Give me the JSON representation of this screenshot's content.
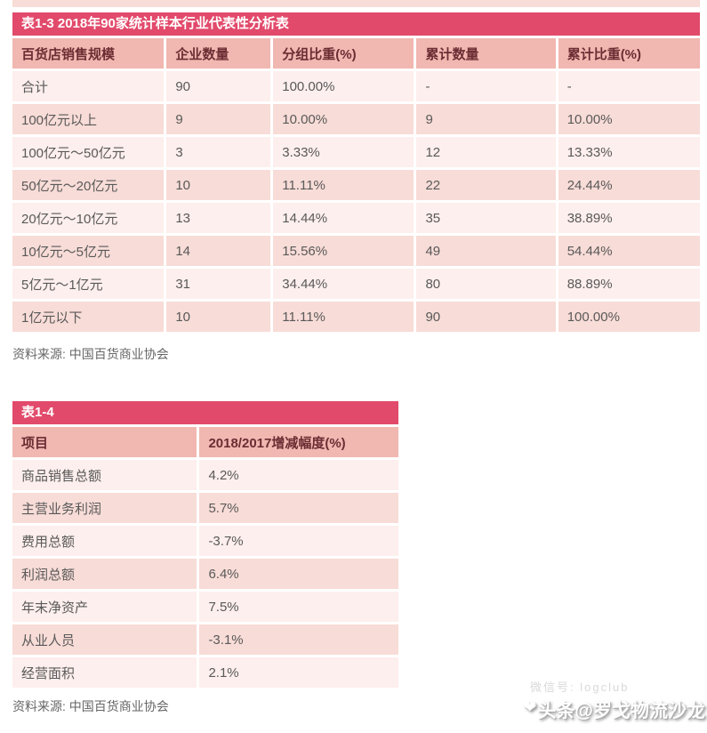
{
  "colors": {
    "title_bar": "#e24a6b",
    "header_bg": "#f1b7b1",
    "header_text": "#6b2d33",
    "row_light": "#fdefed",
    "row_dark": "#f8dcd7",
    "body_text": "#595959",
    "source_text": "#666666"
  },
  "table13": {
    "title": "表1-3 2018年90家统计样本行业代表性分析表",
    "headers": [
      "百货店销售规模",
      "企业数量",
      "分组比重(%)",
      "累计数量",
      "累计比重(%)"
    ],
    "rows": [
      [
        "合计",
        "90",
        "100.00%",
        "-",
        "-"
      ],
      [
        "100亿元以上",
        "9",
        "10.00%",
        "9",
        "10.00%"
      ],
      [
        "100亿元～50亿元",
        "3",
        "3.33%",
        "12",
        "13.33%"
      ],
      [
        "50亿元～20亿元",
        "10",
        "11.11%",
        "22",
        "24.44%"
      ],
      [
        "20亿元～10亿元",
        "13",
        "14.44%",
        "35",
        "38.89%"
      ],
      [
        "10亿元～5亿元",
        "14",
        "15.56%",
        "49",
        "54.44%"
      ],
      [
        "5亿元～1亿元",
        "31",
        "34.44%",
        "80",
        "88.89%"
      ],
      [
        "1亿元以下",
        "10",
        "11.11%",
        "90",
        "100.00%"
      ]
    ],
    "source": "资料来源: 中国百货商业协会"
  },
  "table14": {
    "title": "表1-4",
    "headers": [
      "项目",
      "2018/2017增减幅度(%)"
    ],
    "rows": [
      [
        "商品销售总额",
        "4.2%"
      ],
      [
        "主营业务利润",
        "5.7%"
      ],
      [
        "费用总额",
        "-3.7%"
      ],
      [
        "利润总额",
        "6.4%"
      ],
      [
        "年末净资产",
        "7.5%"
      ],
      [
        "从业人员",
        "-3.1%"
      ],
      [
        "经营面积",
        "2.1%"
      ]
    ],
    "source": "资料来源: 中国百货商业协会"
  },
  "watermark": {
    "primary": "头条@罗戈物流沙龙",
    "secondary": "微信号: logclub",
    "heart_glyph": "❤"
  }
}
